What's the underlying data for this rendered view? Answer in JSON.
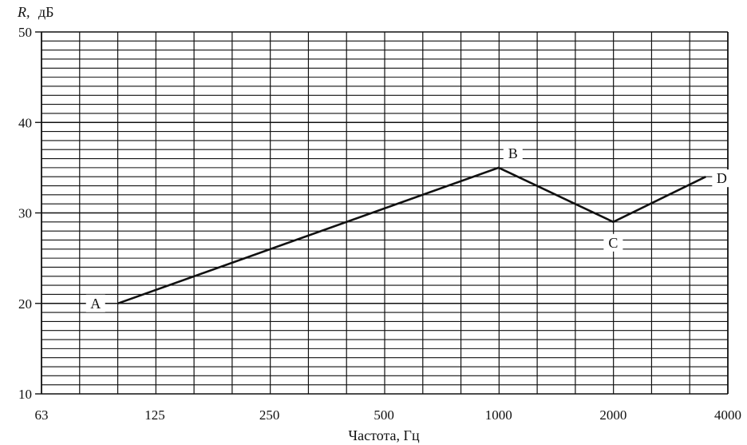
{
  "chart_data": {
    "type": "line",
    "title": "",
    "ylabel_symbol": "R,",
    "ylabel_unit": "дБ",
    "xlabel": "Частота,  Гц",
    "x_scale": "log2",
    "xlim": [
      63,
      4000
    ],
    "ylim": [
      10,
      50
    ],
    "x_ticks": [
      {
        "value": 63,
        "label": "63"
      },
      {
        "value": 125,
        "label": "125"
      },
      {
        "value": 250,
        "label": "250"
      },
      {
        "value": 500,
        "label": "500"
      },
      {
        "value": 1000,
        "label": "1000"
      },
      {
        "value": 2000,
        "label": "2000"
      },
      {
        "value": 4000,
        "label": "4000"
      }
    ],
    "y_ticks": [
      {
        "value": 10,
        "label": "10"
      },
      {
        "value": 20,
        "label": "20"
      },
      {
        "value": 30,
        "label": "30"
      },
      {
        "value": 40,
        "label": "40"
      },
      {
        "value": 50,
        "label": "50"
      }
    ],
    "grid": true,
    "grid_x_divisions_per_octave": 3,
    "grid_y_step": 1,
    "series": [
      {
        "points": [
          {
            "label": "A",
            "x": 100,
            "y": 20
          },
          {
            "label": "B",
            "x": 1000,
            "y": 35
          },
          {
            "label": "C",
            "x": 2000,
            "y": 29
          },
          {
            "label": "D",
            "x": 3500,
            "y": 34
          }
        ],
        "color": "#111111"
      }
    ]
  }
}
